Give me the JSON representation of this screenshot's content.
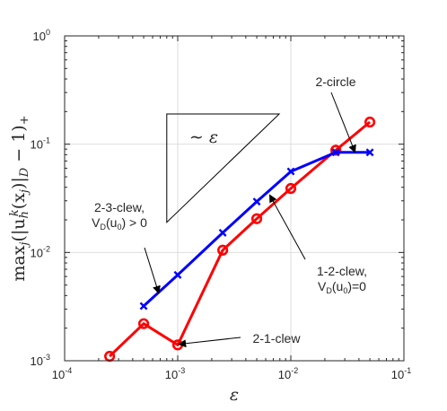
{
  "chart_data": {
    "type": "line",
    "xscale": "log",
    "yscale": "log",
    "xlim": [
      0.0001,
      0.1
    ],
    "ylim": [
      0.001,
      1
    ],
    "grid": true,
    "xlabel": "ε",
    "ylabel_parts": [
      "max",
      "j",
      "(|u",
      "h",
      "k",
      "(x",
      "j",
      ")|",
      "D",
      " − 1)",
      "+"
    ],
    "xticks": [
      {
        "base": "10",
        "exp": "-4",
        "value": 0.0001
      },
      {
        "base": "10",
        "exp": "-3",
        "value": 0.001
      },
      {
        "base": "10",
        "exp": "-2",
        "value": 0.01
      },
      {
        "base": "10",
        "exp": "-1",
        "value": 0.1
      }
    ],
    "yticks": [
      {
        "base": "10",
        "exp": "-3",
        "value": 0.001
      },
      {
        "base": "10",
        "exp": "-2",
        "value": 0.01
      },
      {
        "base": "10",
        "exp": "-1",
        "value": 0.1
      },
      {
        "base": "10",
        "exp": "0",
        "value": 1
      }
    ],
    "series": [
      {
        "color": "#ff0000",
        "marker": "circle",
        "x": [
          0.00025,
          0.0005,
          0.001,
          0.0025,
          0.005,
          0.01,
          0.025,
          0.05
        ],
        "y": [
          0.0011,
          0.0022,
          0.0014,
          0.0105,
          0.0205,
          0.039,
          0.088,
          0.16
        ]
      },
      {
        "color": "#0000ff",
        "marker": "x",
        "x": [
          0.0005,
          0.001,
          0.0025,
          0.005,
          0.01,
          0.025,
          0.05
        ],
        "y": [
          0.0032,
          0.0062,
          0.0152,
          0.0295,
          0.056,
          0.084,
          0.084
        ]
      }
    ],
    "slope_triangle": {
      "label": "∼ ε",
      "x": [
        0.0008,
        0.0008,
        0.0079
      ],
      "y": [
        0.019,
        0.19,
        0.19
      ]
    },
    "annotations": [
      {
        "lines": [
          "2-circle"
        ],
        "arrow_to": [
          0.037,
          0.084
        ]
      },
      {
        "lines": [
          "2-3-clew,",
          "V_D(u_0) > 0"
        ],
        "arrow_to": [
          0.00068,
          0.0042
        ]
      },
      {
        "lines": [
          "1-2-clew,",
          "V_D(u_0)=0"
        ],
        "arrow_to": [
          0.0065,
          0.034
        ]
      },
      {
        "lines": [
          "2-1-clew"
        ],
        "arrow_to": [
          0.00102,
          0.00142
        ]
      }
    ]
  }
}
